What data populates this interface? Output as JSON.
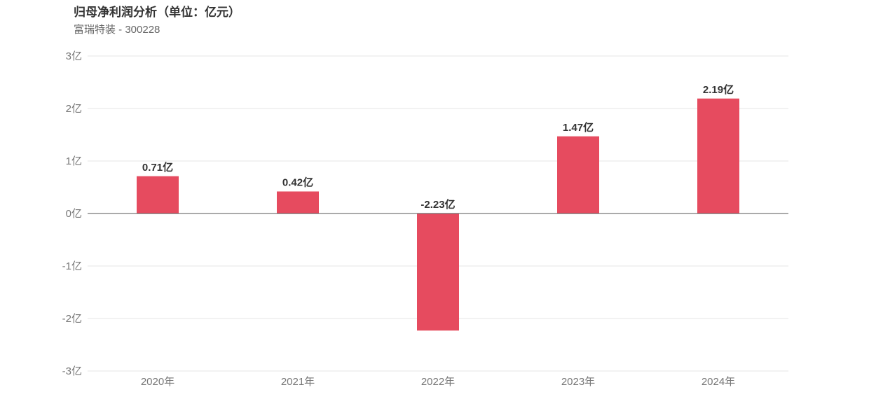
{
  "title": "归母净利润分析（单位：亿元）",
  "subtitle": "富瑞特装 - 300228",
  "colors": {
    "bar": "#e64b5f",
    "grid": "#e6e6e6",
    "zero_line": "#555555"
  },
  "chart_data": {
    "type": "bar",
    "categories": [
      "2020年",
      "2021年",
      "2022年",
      "2023年",
      "2024年"
    ],
    "values": [
      0.71,
      0.42,
      -2.23,
      1.47,
      2.19
    ],
    "data_labels": [
      "0.71亿",
      "0.42亿",
      "-2.23亿",
      "1.47亿",
      "2.19亿"
    ],
    "y_ticks": [
      3,
      2,
      1,
      0,
      -1,
      -2,
      -3
    ],
    "y_tick_labels": [
      "3亿",
      "2亿",
      "1亿",
      "0亿",
      "-1亿",
      "-2亿",
      "-3亿"
    ],
    "ylim": [
      -3,
      3
    ],
    "grid": true,
    "legend": "none"
  }
}
